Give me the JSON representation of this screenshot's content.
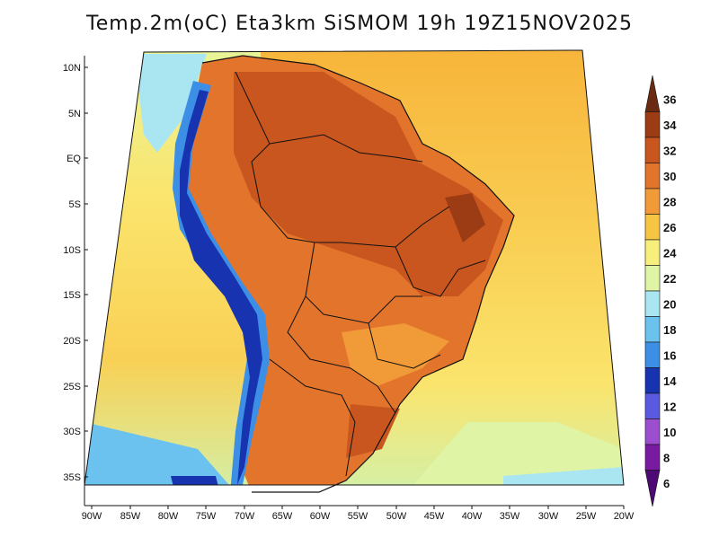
{
  "title": "Temp.2m(oC) Eta3km SiSMOM 19h 19Z15NOV2025",
  "latitude_labels": [
    "10N",
    "5N",
    "EQ",
    "5S",
    "10S",
    "15S",
    "20S",
    "25S",
    "30S",
    "35S"
  ],
  "longitude_labels": [
    "90W",
    "85W",
    "80W",
    "75W",
    "70W",
    "65W",
    "60W",
    "55W",
    "50W",
    "45W",
    "40W",
    "35W",
    "30W",
    "25W",
    "20W"
  ],
  "colorbar": {
    "labels": [
      "36",
      "34",
      "32",
      "30",
      "28",
      "26",
      "24",
      "22",
      "20",
      "18",
      "16",
      "14",
      "12",
      "10",
      "8",
      "6"
    ],
    "colors": [
      "#6b2a12",
      "#9c3c14",
      "#c8561e",
      "#e2742c",
      "#f19a38",
      "#f6c543",
      "#f8ee7c",
      "#dff4a4",
      "#a9e6f2",
      "#6cc2ef",
      "#3d8fe6",
      "#1733b0",
      "#5a5ae0",
      "#9d4ecf",
      "#7a1aa0",
      "#4d0a75"
    ]
  },
  "colors": {
    "ocean_north": "#f7bb3b",
    "ocean_mid": "#fbe067",
    "ocean_south": "#d3f0a8",
    "land_hot": "#c8561e",
    "land_warm": "#e2742c",
    "andes": "#3d4fc8",
    "border": "#111111"
  }
}
